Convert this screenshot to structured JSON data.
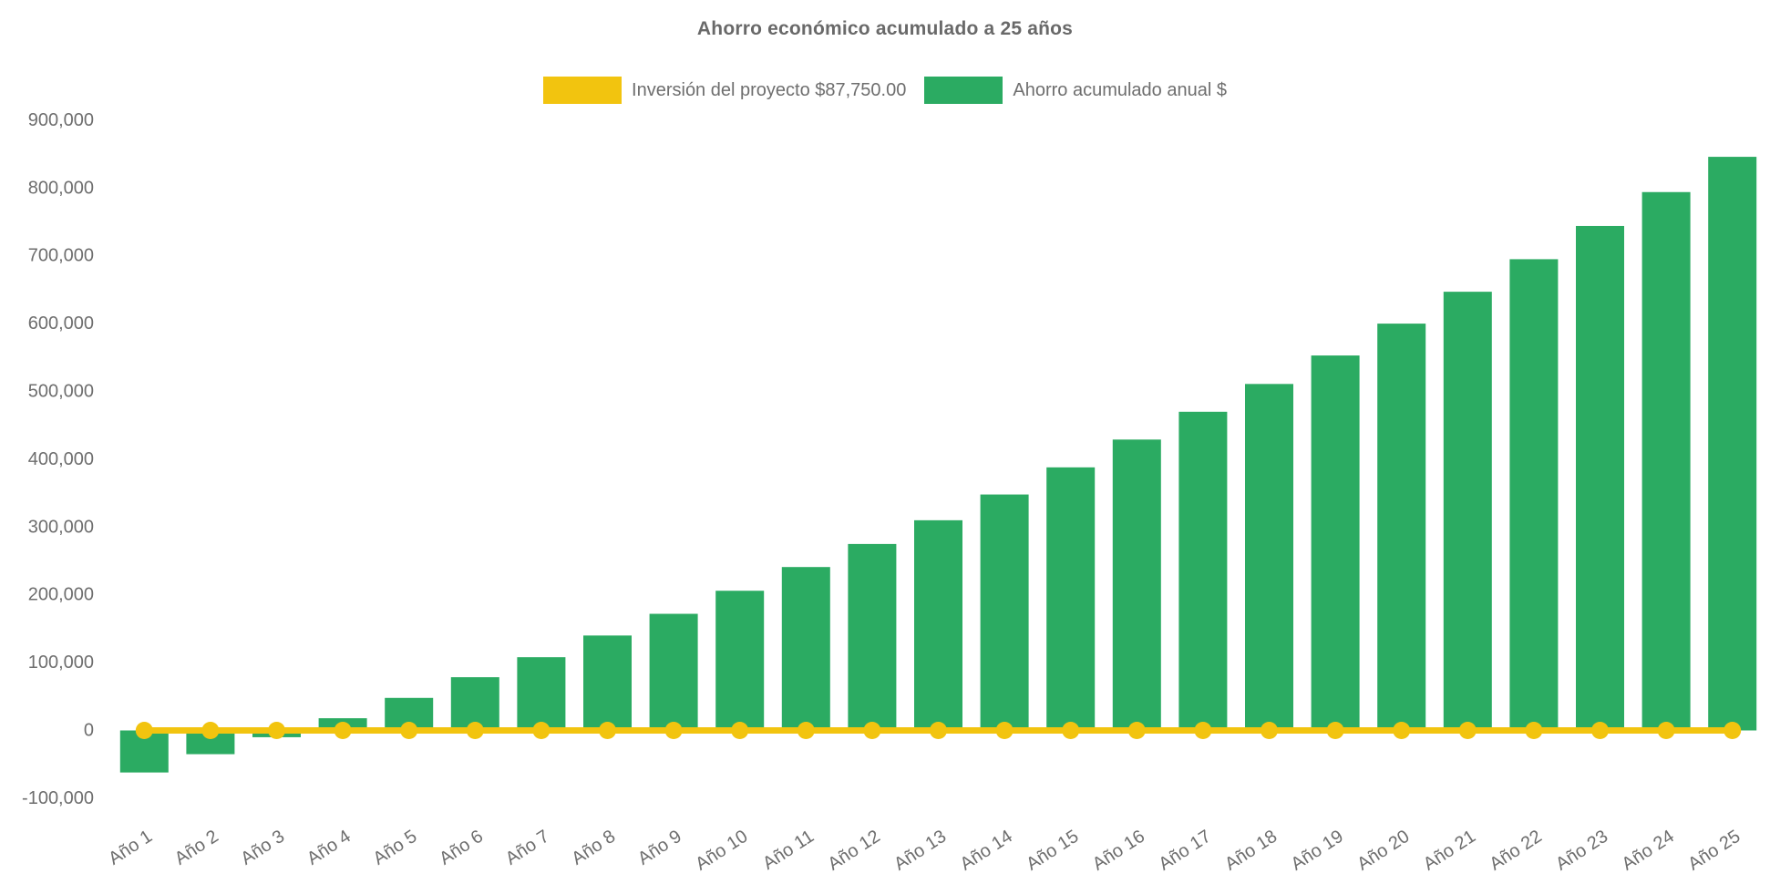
{
  "chart": {
    "title": "Ahorro económico acumulado a 25 años",
    "legend": [
      {
        "label": "Inversión del proyecto $87,750.00",
        "color": "#F2C40F"
      },
      {
        "label": "Ahorro acumulado anual $",
        "color": "#2BAB62"
      }
    ]
  },
  "chart_data": {
    "type": "bar",
    "title": "Ahorro económico acumulado a 25 años",
    "categories": [
      "Año 1",
      "Año 2",
      "Año 3",
      "Año 4",
      "Año 5",
      "Año 6",
      "Año 7",
      "Año 8",
      "Año 9",
      "Año 10",
      "Año 11",
      "Año 12",
      "Año 13",
      "Año 14",
      "Año 15",
      "Año 16",
      "Año 17",
      "Año 18",
      "Año 19",
      "Año 20",
      "Año 21",
      "Año 22",
      "Año 23",
      "Año 24",
      "Año 25"
    ],
    "series": [
      {
        "name": "Inversión del proyecto $87,750.00",
        "type": "line",
        "color": "#F2C40F",
        "values": [
          0,
          0,
          0,
          0,
          0,
          0,
          0,
          0,
          0,
          0,
          0,
          0,
          0,
          0,
          0,
          0,
          0,
          0,
          0,
          0,
          0,
          0,
          0,
          0,
          0
        ]
      },
      {
        "name": "Ahorro acumulado anual $",
        "type": "bar",
        "color": "#2BAB62",
        "values": [
          -62000,
          -35000,
          -10000,
          18000,
          48000,
          78500,
          108000,
          140000,
          172000,
          206000,
          241000,
          275000,
          310000,
          348000,
          388000,
          429000,
          470000,
          511000,
          553000,
          600000,
          647000,
          695000,
          744000,
          794000,
          846000
        ]
      }
    ],
    "xlabel": "",
    "ylabel": "",
    "ylim": [
      -100000,
      900000
    ],
    "ytick_step": 100000,
    "grid": false,
    "legend_position": "top",
    "text_color": "#6e6e6e"
  }
}
